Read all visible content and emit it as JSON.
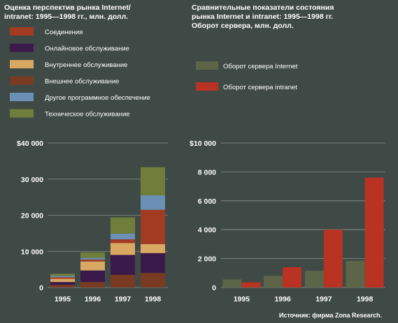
{
  "chart_data": [
    {
      "type": "bar",
      "stacked": true,
      "title": "Оценка перспектив рынка Internet/\nintranet: 1995—1998 гг., млн. долл.",
      "categories": [
        "1995",
        "1996",
        "1997",
        "1998"
      ],
      "yticks": [
        "0",
        "10 000",
        "20 000",
        "30 000",
        "$40 000"
      ],
      "ylim": [
        0,
        40000
      ],
      "grid": true,
      "legend_position": "top-left",
      "series": [
        {
          "name": "Внешнее обслуживание",
          "color": "#7a3a22",
          "values": [
            700,
            1500,
            3500,
            4000
          ]
        },
        {
          "name": "Онлайновое обслуживание",
          "color": "#3a1a4a",
          "values": [
            800,
            3200,
            5500,
            5500
          ]
        },
        {
          "name": "Внутреннее обслуживание",
          "color": "#d9a862",
          "values": [
            900,
            2500,
            3300,
            2500
          ]
        },
        {
          "name": "Соединения",
          "color": "#a33b22",
          "values": [
            400,
            500,
            1000,
            9500
          ]
        },
        {
          "name": "Другое программное обеспечение",
          "color": "#6b8fb5",
          "values": [
            400,
            500,
            1600,
            4000
          ]
        },
        {
          "name": "Техническое обслуживание",
          "color": "#6f7e3b",
          "values": [
            600,
            1500,
            4500,
            7800
          ]
        }
      ],
      "legend_order": [
        "Соединения",
        "Онлайновое обслуживание",
        "Внутреннее обслуживание",
        "Внешнее обслуживание",
        "Другое программное обеспечение",
        "Техническое обслуживание"
      ]
    },
    {
      "type": "bar",
      "stacked": false,
      "title": "Сравнительные показатели состояния\nрынка Internet и intranet: 1995—1998 гг.\nОборот сервера, млн. долл.",
      "categories": [
        "1995",
        "1996",
        "1997",
        "1998"
      ],
      "yticks": [
        "0",
        "2 000",
        "4 000",
        "6 000",
        "8 000",
        "$10 000"
      ],
      "ylim": [
        0,
        10000
      ],
      "grid": true,
      "legend_position": "top-left",
      "series": [
        {
          "name": "Оборот сервера Internet",
          "color": "#5c6548",
          "values": [
            550,
            800,
            1150,
            1850
          ]
        },
        {
          "name": "Оборот сервера intranet",
          "color": "#b93222",
          "values": [
            350,
            1400,
            4000,
            7600
          ]
        }
      ]
    }
  ],
  "source": "Источник: фирма Zona Research."
}
